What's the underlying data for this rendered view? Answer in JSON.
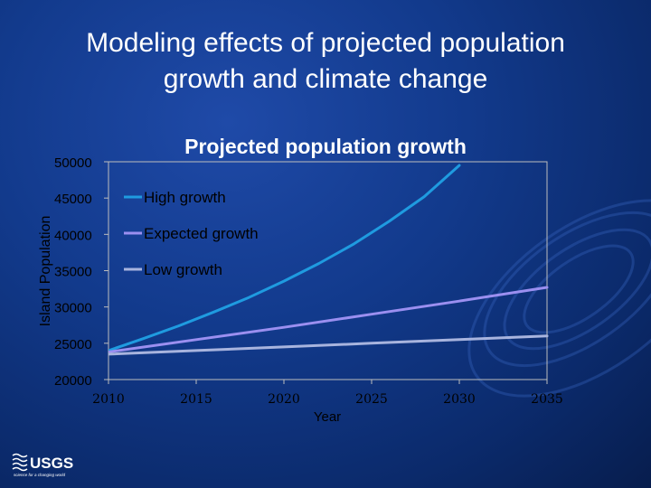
{
  "slide": {
    "title_line1": "Modeling effects of projected population",
    "title_line2": "growth and climate change"
  },
  "logo": {
    "name": "USGS",
    "tagline": "science for a changing world"
  },
  "colors": {
    "background": "#123a8c",
    "title_text": "#ffffff",
    "axis_text": "#000000",
    "high": "#1f9be0",
    "expected": "#9b8ff0",
    "low": "#a8b4de"
  },
  "chart_data": {
    "type": "line",
    "title": "Projected population growth",
    "xlabel": "Year",
    "ylabel": "Island Population",
    "xlim": [
      2010,
      2035
    ],
    "ylim": [
      20000,
      50000
    ],
    "x_ticks": [
      "2010",
      "2015",
      "2020",
      "2025",
      "2030",
      "2035"
    ],
    "y_ticks": [
      "50000",
      "45000",
      "40000",
      "35000",
      "30000",
      "25000",
      "20000"
    ],
    "legend_position": "top-left",
    "grid": false,
    "series": [
      {
        "name": "High growth",
        "color": "#1f9be0",
        "x": [
          2010,
          2012,
          2014,
          2016,
          2018,
          2020,
          2022,
          2024,
          2026,
          2028,
          2030
        ],
        "y": [
          24000,
          25650,
          27400,
          29300,
          31300,
          33550,
          36000,
          38700,
          41800,
          45200,
          49500
        ]
      },
      {
        "name": "Expected growth",
        "color": "#9b8ff0",
        "x": [
          2010,
          2015,
          2020,
          2025,
          2030,
          2035
        ],
        "y": [
          23800,
          25500,
          27200,
          29000,
          30800,
          32700
        ]
      },
      {
        "name": "Low growth",
        "color": "#a8b4de",
        "x": [
          2010,
          2015,
          2020,
          2025,
          2030,
          2035
        ],
        "y": [
          23500,
          24000,
          24500,
          25000,
          25500,
          26000
        ]
      }
    ]
  }
}
